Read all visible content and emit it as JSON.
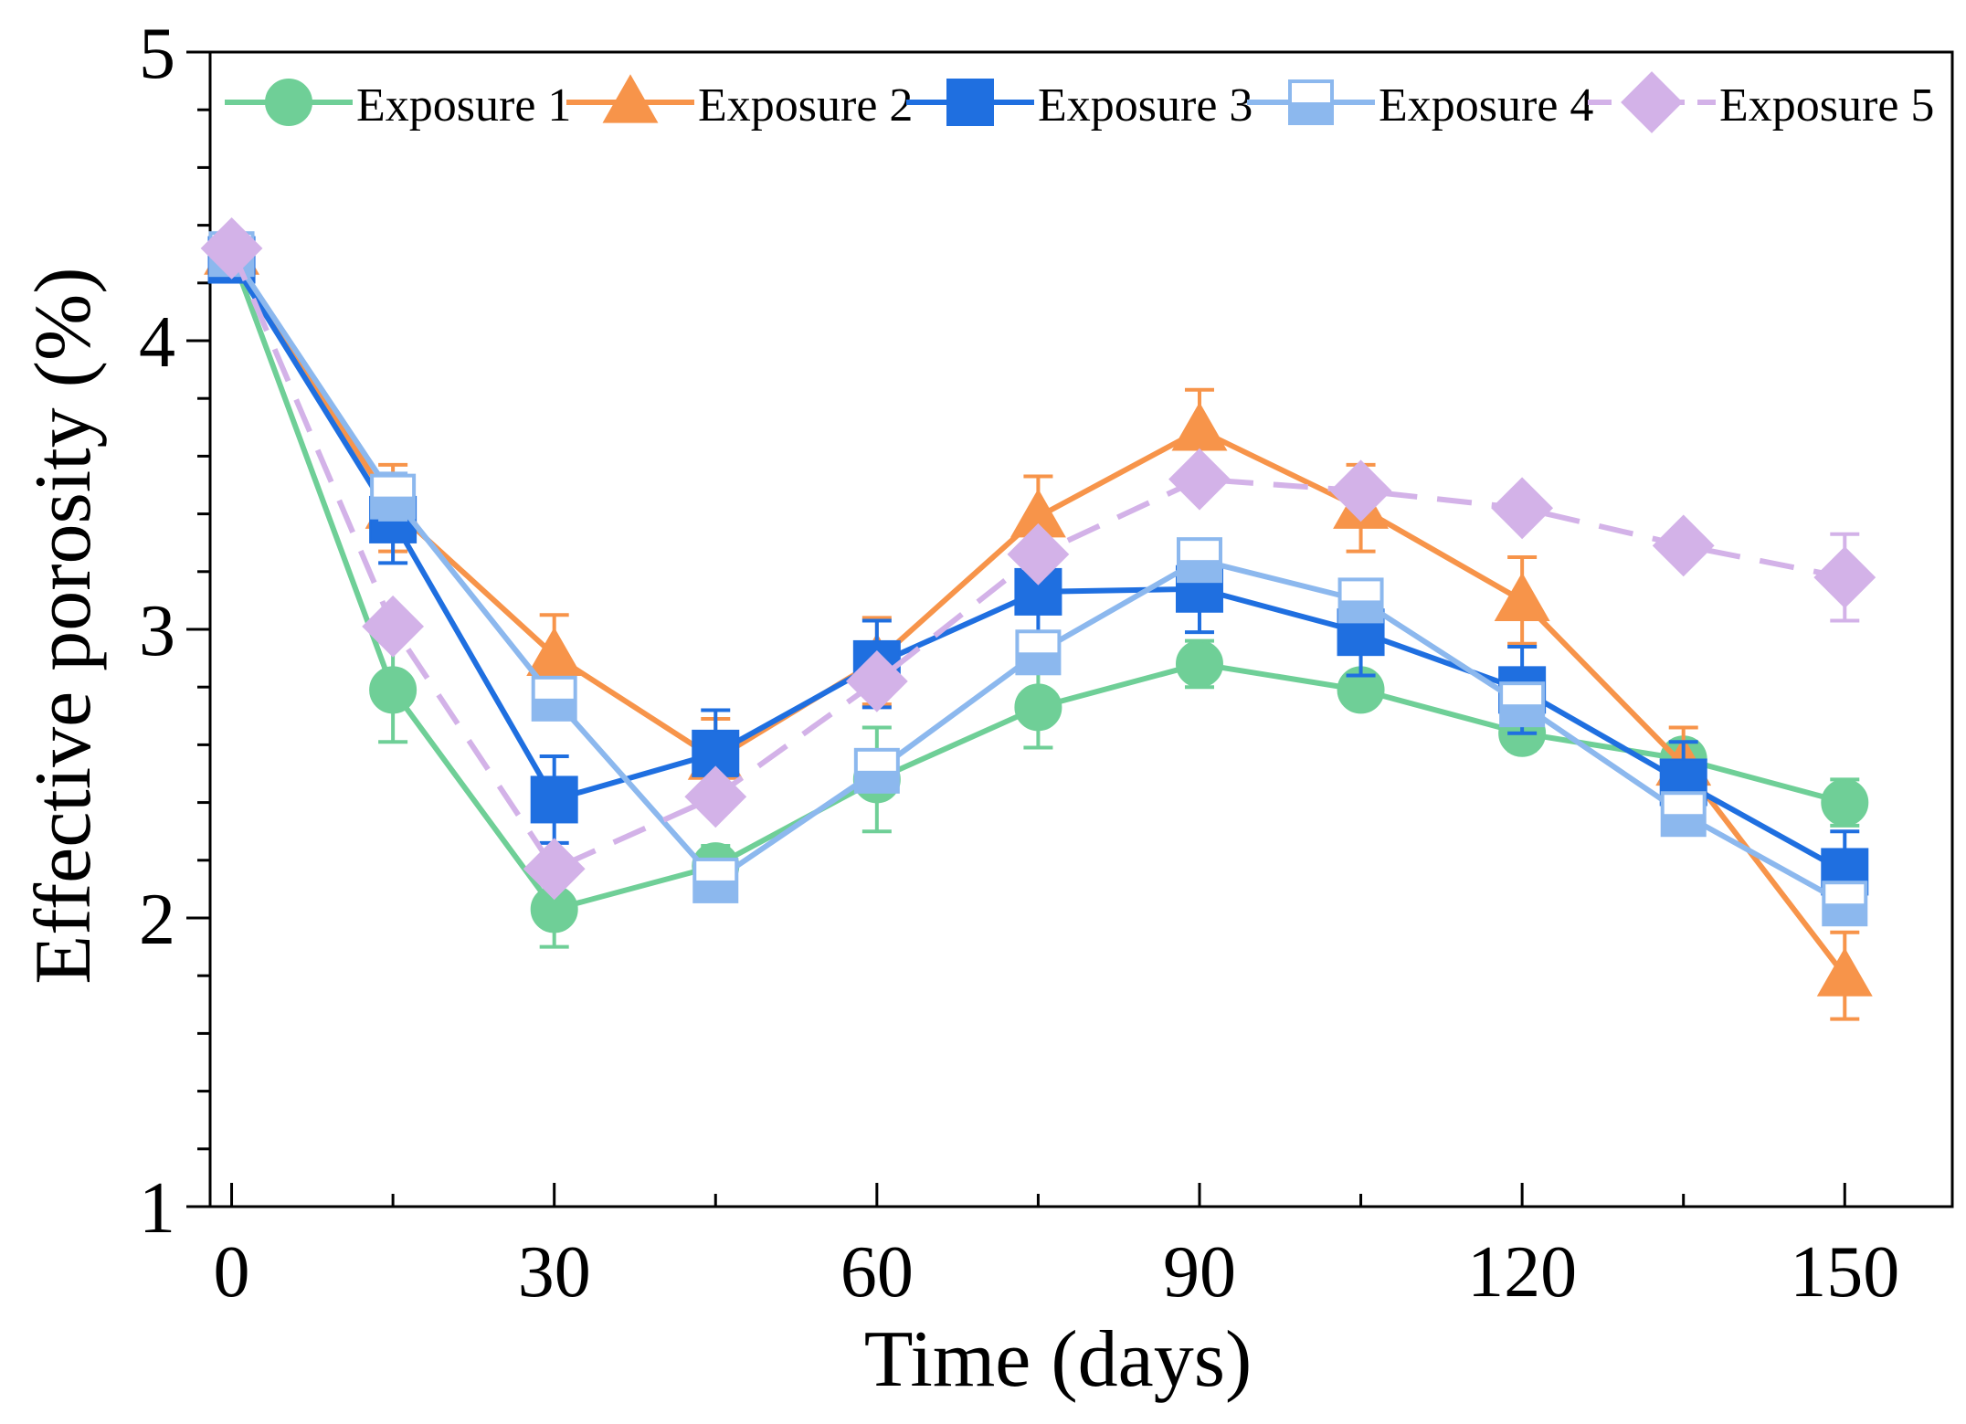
{
  "chart_data": {
    "type": "line",
    "xlabel": "Time (days)",
    "ylabel": "Effective porosity (%)",
    "xlim": [
      -2,
      160
    ],
    "ylim": [
      1,
      5
    ],
    "xticks": [
      0,
      30,
      60,
      90,
      120,
      150
    ],
    "xticks_minor": [
      15,
      45,
      75,
      105,
      135
    ],
    "yticks": [
      1,
      2,
      3,
      4,
      5
    ],
    "yticks_minor": [
      1.2,
      1.4,
      1.6,
      1.8,
      2.2,
      2.4,
      2.6,
      2.8,
      3.2,
      3.4,
      3.6,
      3.8,
      4.2,
      4.4,
      4.6,
      4.8
    ],
    "legend_position": "top",
    "x": [
      0,
      15,
      30,
      45,
      60,
      75,
      90,
      105,
      120,
      135,
      150
    ],
    "series": [
      {
        "name": "Exposure 1",
        "color": "#6fcf97",
        "marker": "circle",
        "dash": "solid",
        "values": [
          4.3,
          2.79,
          2.03,
          2.18,
          2.48,
          2.73,
          2.88,
          2.79,
          2.64,
          2.55,
          2.4
        ],
        "errors": [
          0.05,
          0.18,
          0.13,
          0.07,
          0.18,
          0.14,
          0.08,
          0.05,
          0.06,
          0.04,
          0.08
        ]
      },
      {
        "name": "Exposure 2",
        "color": "#f7944a",
        "marker": "triangle",
        "dash": "solid",
        "values": [
          4.3,
          3.42,
          2.91,
          2.55,
          2.89,
          3.39,
          3.69,
          3.42,
          3.1,
          2.53,
          1.8
        ],
        "errors": [
          0.05,
          0.15,
          0.14,
          0.14,
          0.15,
          0.14,
          0.14,
          0.15,
          0.15,
          0.13,
          0.15
        ]
      },
      {
        "name": "Exposure 3",
        "color": "#1f6fe0",
        "marker": "square",
        "dash": "solid",
        "values": [
          4.28,
          3.38,
          2.41,
          2.57,
          2.88,
          3.13,
          3.14,
          2.99,
          2.79,
          2.47,
          2.16
        ],
        "errors": [
          0.05,
          0.15,
          0.15,
          0.15,
          0.15,
          0.15,
          0.15,
          0.15,
          0.15,
          0.14,
          0.14
        ]
      },
      {
        "name": "Exposure 4",
        "color": "#8cb8ee",
        "marker": "half-square",
        "dash": "solid",
        "values": [
          4.3,
          3.46,
          2.76,
          2.13,
          2.51,
          2.92,
          3.24,
          3.1,
          2.74,
          2.36,
          2.05
        ],
        "errors": [
          0.05,
          0.08,
          0.06,
          0.04,
          0.06,
          0.06,
          0.06,
          0.06,
          0.06,
          0.05,
          0.06
        ]
      },
      {
        "name": "Exposure 5",
        "color": "#d3b2e8",
        "marker": "diamond",
        "dash": "dashed",
        "values": [
          4.32,
          3.01,
          2.17,
          2.42,
          2.82,
          3.26,
          3.52,
          3.48,
          3.42,
          3.29,
          3.18
        ],
        "errors": [
          0.05,
          0.05,
          0.05,
          0.05,
          0.05,
          0.05,
          0.05,
          0.05,
          0.05,
          0.05,
          0.15
        ]
      }
    ]
  }
}
